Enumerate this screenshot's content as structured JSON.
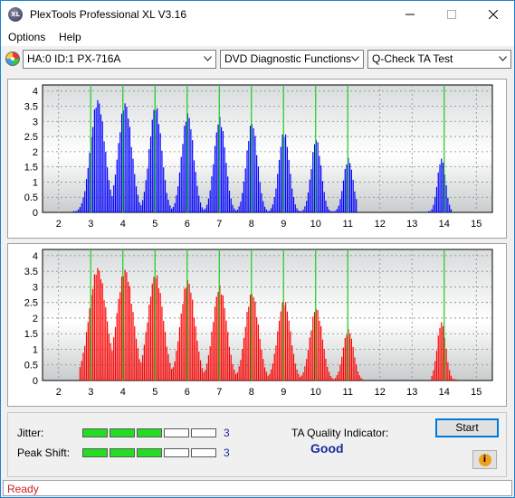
{
  "window": {
    "title": "PlexTools Professional XL V3.16",
    "icon_text": "XL"
  },
  "menu": {
    "items": [
      "Options",
      "Help"
    ]
  },
  "toolbar": {
    "drive": "HA:0 ID:1  PX-716A",
    "function": "DVD Diagnostic Functions",
    "test": "Q-Check TA Test"
  },
  "chart_data": [
    {
      "type": "bar",
      "color": "#0000ff",
      "x_ticks": [
        "2",
        "3",
        "4",
        "5",
        "6",
        "7",
        "8",
        "9",
        "10",
        "11",
        "12",
        "13",
        "14",
        "15"
      ],
      "y_ticks": [
        "4",
        "3.5",
        "3",
        "2.5",
        "2",
        "1.5",
        "1",
        "0.5",
        "0"
      ],
      "xlim": [
        1.5,
        15.5
      ],
      "ylim": [
        0,
        4.2
      ],
      "markers": [
        3,
        4,
        5,
        6,
        7,
        8,
        9,
        10,
        11,
        14
      ],
      "peaks": [
        {
          "x": 3.2,
          "h": 3.75,
          "w": 0.3
        },
        {
          "x": 4.05,
          "h": 3.65,
          "w": 0.28
        },
        {
          "x": 5.0,
          "h": 3.55,
          "w": 0.26
        },
        {
          "x": 6.0,
          "h": 3.3,
          "w": 0.25
        },
        {
          "x": 7.0,
          "h": 3.15,
          "w": 0.24
        },
        {
          "x": 8.0,
          "h": 3.0,
          "w": 0.23
        },
        {
          "x": 9.0,
          "h": 2.7,
          "w": 0.22
        },
        {
          "x": 10.0,
          "h": 2.45,
          "w": 0.21
        },
        {
          "x": 11.0,
          "h": 1.8,
          "w": 0.2
        },
        {
          "x": 13.9,
          "h": 1.8,
          "w": 0.17
        }
      ],
      "ranges": [
        [
          2.4,
          11.3
        ],
        [
          13.5,
          14.25
        ]
      ]
    },
    {
      "type": "bar",
      "color": "#ff0000",
      "x_ticks": [
        "2",
        "3",
        "4",
        "5",
        "6",
        "7",
        "8",
        "9",
        "10",
        "11",
        "12",
        "13",
        "14",
        "15"
      ],
      "y_ticks": [
        "4",
        "3.5",
        "3",
        "2.5",
        "2",
        "1.5",
        "1",
        "0.5",
        "0"
      ],
      "xlim": [
        1.5,
        15.5
      ],
      "ylim": [
        0,
        4.2
      ],
      "markers": [
        3,
        4,
        5,
        6,
        7,
        8,
        9,
        10,
        11,
        14
      ],
      "peaks": [
        {
          "x": 3.2,
          "h": 3.65,
          "w": 0.36
        },
        {
          "x": 4.05,
          "h": 3.6,
          "w": 0.34
        },
        {
          "x": 5.0,
          "h": 3.45,
          "w": 0.32
        },
        {
          "x": 6.0,
          "h": 3.25,
          "w": 0.3
        },
        {
          "x": 7.0,
          "h": 3.05,
          "w": 0.29
        },
        {
          "x": 8.0,
          "h": 2.85,
          "w": 0.28
        },
        {
          "x": 9.0,
          "h": 2.6,
          "w": 0.27
        },
        {
          "x": 10.0,
          "h": 2.35,
          "w": 0.26
        },
        {
          "x": 11.0,
          "h": 1.65,
          "w": 0.22
        },
        {
          "x": 13.9,
          "h": 1.9,
          "w": 0.18
        }
      ],
      "ranges": [
        [
          2.6,
          11.5
        ],
        [
          13.6,
          14.4
        ]
      ]
    }
  ],
  "metrics": {
    "jitter": {
      "label": "Jitter:",
      "value": "3",
      "level": 3,
      "max": 5
    },
    "peak_shift": {
      "label": "Peak Shift:",
      "value": "3",
      "level": 3,
      "max": 5
    }
  },
  "quality": {
    "label": "TA Quality Indicator:",
    "value": "Good"
  },
  "buttons": {
    "start": "Start",
    "info_glyph": "i"
  },
  "status": {
    "text": "Ready"
  }
}
